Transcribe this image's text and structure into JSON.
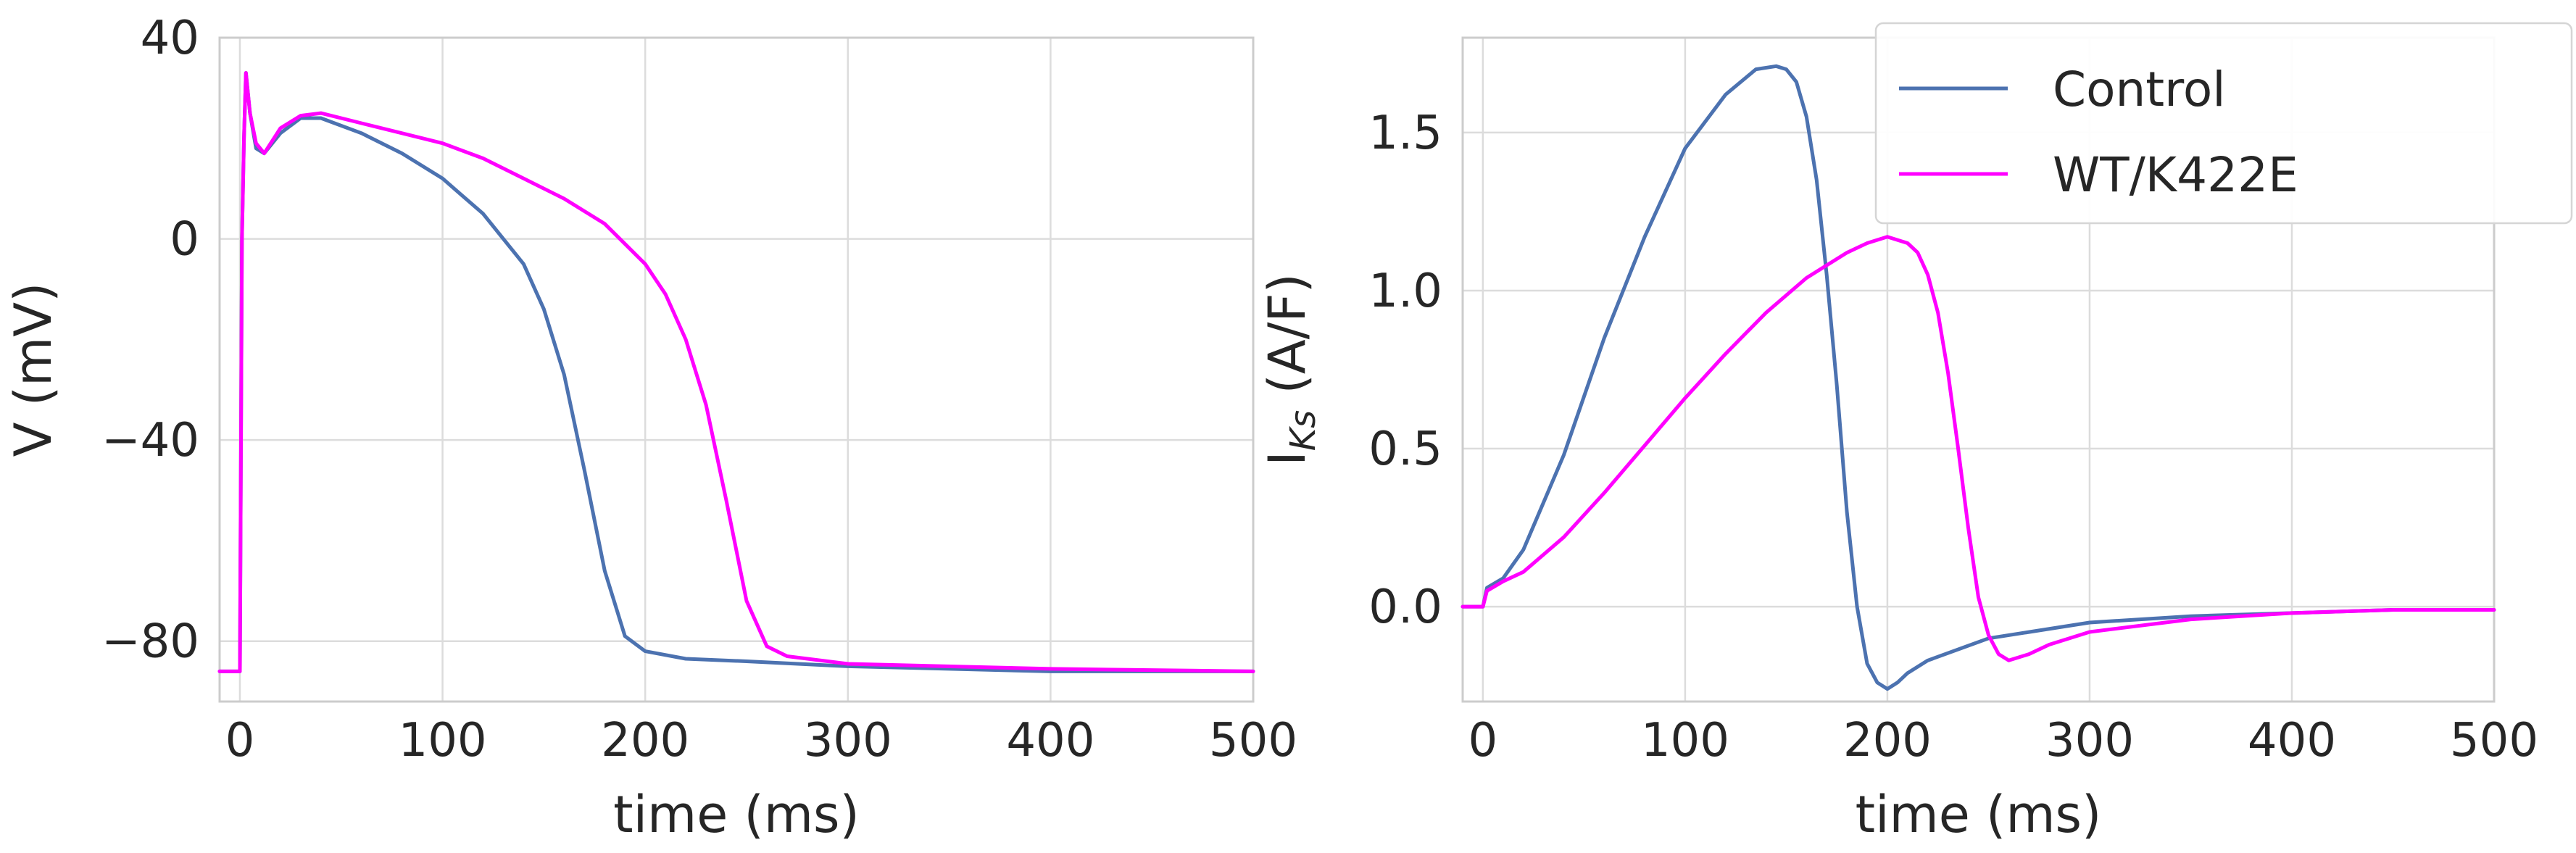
{
  "chart_data": [
    {
      "type": "line",
      "xlabel": "time (ms)",
      "ylabel": "V (mV)",
      "xlim": [
        -10,
        500
      ],
      "ylim": [
        -92,
        40
      ],
      "xticks": [
        0,
        100,
        200,
        300,
        400,
        500
      ],
      "yticks": [
        -80,
        -40,
        0,
        40
      ],
      "xtick_labels": [
        "0",
        "100",
        "200",
        "300",
        "400",
        "500"
      ],
      "ytick_labels": [
        "−80",
        "−40",
        "0",
        "40"
      ],
      "grid": true,
      "series": [
        {
          "name": "Control",
          "color": "#4c72b0",
          "x": [
            -10,
            0,
            1,
            2,
            3,
            5,
            8,
            12,
            20,
            30,
            40,
            60,
            80,
            100,
            120,
            140,
            150,
            160,
            170,
            180,
            190,
            200,
            220,
            250,
            300,
            350,
            400,
            450,
            500
          ],
          "y": [
            -86,
            -86,
            0,
            20,
            33,
            25,
            18,
            17,
            21,
            24,
            24,
            21,
            17,
            12,
            5,
            -5,
            -14,
            -27,
            -46,
            -66,
            -79,
            -82,
            -83.5,
            -84,
            -85,
            -85.5,
            -86,
            -86,
            -86
          ]
        },
        {
          "name": "WT/K422E",
          "color": "#ff00ff",
          "x": [
            -10,
            0,
            1,
            2,
            3,
            5,
            8,
            12,
            20,
            30,
            40,
            60,
            80,
            100,
            120,
            140,
            160,
            180,
            200,
            210,
            220,
            230,
            240,
            250,
            260,
            270,
            300,
            400,
            500
          ],
          "y": [
            -86,
            -86,
            0,
            20,
            33,
            25,
            19,
            17,
            22,
            24.5,
            25,
            23,
            21,
            19,
            16,
            12,
            8,
            3,
            -5,
            -11,
            -20,
            -33,
            -52,
            -72,
            -81,
            -83,
            -84.5,
            -85.5,
            -86
          ]
        }
      ]
    },
    {
      "type": "line",
      "xlabel": "time (ms)",
      "ylabel_main": "I",
      "ylabel_sub": "Ks",
      "ylabel_rest": " (A/F)",
      "xlim": [
        -10,
        500
      ],
      "ylim": [
        -0.3,
        1.8
      ],
      "xticks": [
        0,
        100,
        200,
        300,
        400,
        500
      ],
      "yticks": [
        0.0,
        0.5,
        1.0,
        1.5
      ],
      "xtick_labels": [
        "0",
        "100",
        "200",
        "300",
        "400",
        "500"
      ],
      "ytick_labels": [
        "0.0",
        "0.5",
        "1.0",
        "1.5"
      ],
      "grid": true,
      "legend_position": "top-right",
      "series": [
        {
          "name": "Control",
          "color": "#4c72b0",
          "x": [
            -10,
            0,
            2,
            10,
            20,
            40,
            60,
            80,
            100,
            120,
            135,
            145,
            150,
            155,
            160,
            165,
            170,
            175,
            180,
            185,
            190,
            195,
            200,
            205,
            210,
            220,
            250,
            300,
            350,
            400,
            450,
            500
          ],
          "y": [
            0,
            0,
            0.06,
            0.09,
            0.18,
            0.48,
            0.85,
            1.17,
            1.45,
            1.62,
            1.7,
            1.71,
            1.7,
            1.66,
            1.55,
            1.35,
            1.05,
            0.7,
            0.3,
            0.0,
            -0.18,
            -0.24,
            -0.26,
            -0.24,
            -0.21,
            -0.17,
            -0.1,
            -0.05,
            -0.03,
            -0.02,
            -0.01,
            -0.01
          ]
        },
        {
          "name": "WT/K422E",
          "color": "#ff00ff",
          "x": [
            -10,
            0,
            2,
            10,
            20,
            40,
            60,
            80,
            100,
            120,
            140,
            160,
            180,
            190,
            200,
            210,
            215,
            220,
            225,
            230,
            235,
            240,
            245,
            250,
            255,
            260,
            270,
            280,
            300,
            350,
            400,
            450,
            500
          ],
          "y": [
            0,
            0,
            0.05,
            0.08,
            0.11,
            0.22,
            0.36,
            0.51,
            0.66,
            0.8,
            0.93,
            1.04,
            1.12,
            1.15,
            1.17,
            1.15,
            1.12,
            1.05,
            0.93,
            0.74,
            0.5,
            0.25,
            0.03,
            -0.09,
            -0.15,
            -0.17,
            -0.15,
            -0.12,
            -0.08,
            -0.04,
            -0.02,
            -0.01,
            -0.01
          ]
        }
      ]
    }
  ]
}
